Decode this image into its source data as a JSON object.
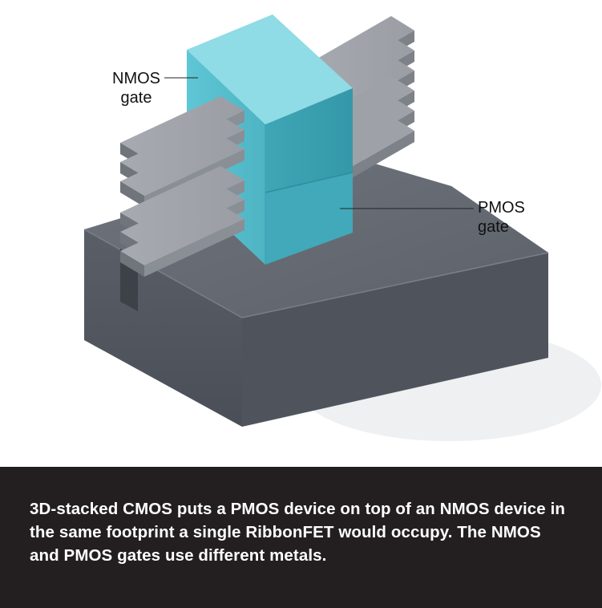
{
  "labels": {
    "nmos_line1": "NMOS",
    "nmos_line2": "gate",
    "pmos_line1": "PMOS",
    "pmos_line2": "gate"
  },
  "caption": "3D-stacked CMOS puts a PMOS device on top of an NMOS device in the same footprint a single RibbonFET would occupy. The NMOS and PMOS gates use different metals.",
  "colors": {
    "gate": "#5cc4d3",
    "ribbon": "#8c9097",
    "substrate": "#555a62",
    "caption_bg": "#231f20"
  }
}
